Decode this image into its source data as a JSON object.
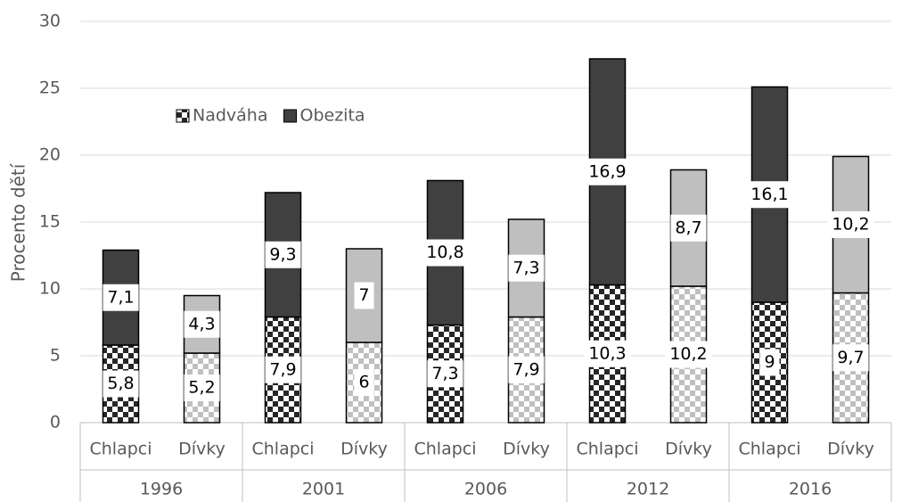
{
  "chart_data": {
    "type": "stacked_bar",
    "y_label": "Procento dětí",
    "groups": [
      "1996",
      "2001",
      "2006",
      "2012",
      "2016"
    ],
    "categories": [
      "Chlapci",
      "Dívky",
      "Chlapci",
      "Dívky",
      "Chlapci",
      "Dívky",
      "Chlapci",
      "Dívky",
      "Chlapci",
      "Dívky"
    ],
    "series": [
      {
        "name": "Nadváha",
        "pattern": "checker",
        "color": "#262626",
        "colors": [
          "#262626",
          "#bfbfbf",
          "#262626",
          "#bfbfbf",
          "#262626",
          "#bfbfbf",
          "#262626",
          "#bfbfbf",
          "#262626",
          "#bfbfbf"
        ],
        "values": [
          5.8,
          5.2,
          7.9,
          6,
          7.3,
          7.9,
          10.3,
          10.2,
          9,
          9.7
        ],
        "value_labels": [
          "5,8",
          "5,2",
          "7,9",
          "6",
          "7,3",
          "7,9",
          "10,3",
          "10,2",
          "9",
          "9,7"
        ]
      },
      {
        "name": "Obezita",
        "pattern": "solid",
        "color": "#404040",
        "colors": [
          "#404040",
          "#bfbfbf",
          "#404040",
          "#bfbfbf",
          "#404040",
          "#bfbfbf",
          "#404040",
          "#bfbfbf",
          "#404040",
          "#bfbfbf"
        ],
        "values": [
          7.1,
          4.3,
          9.3,
          7,
          10.8,
          7.3,
          16.9,
          8.7,
          16.1,
          10.2
        ],
        "value_labels": [
          "7,1",
          "4,3",
          "9,3",
          "7",
          "10,8",
          "7,3",
          "16,9",
          "8,7",
          "16,1",
          "10,2"
        ]
      }
    ],
    "ylim": [
      0,
      30
    ],
    "yticks": [
      0,
      5,
      10,
      15,
      20,
      25,
      30
    ],
    "grid": true,
    "legend": "top-left"
  }
}
